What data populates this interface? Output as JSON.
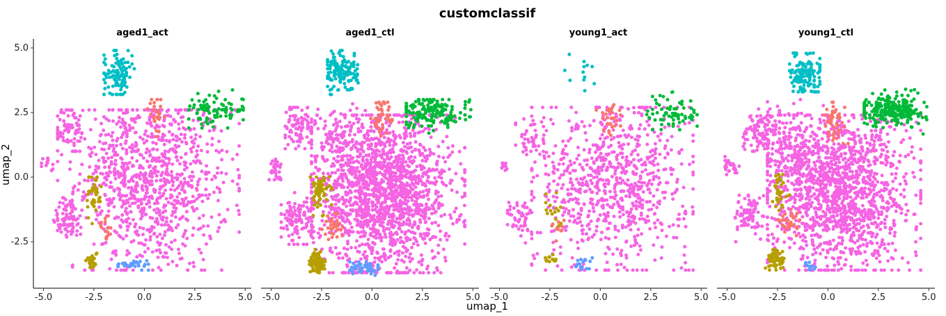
{
  "chart_data": {
    "type": "scatter",
    "title": "customclassif",
    "xlabel": "umap_1",
    "ylabel": "umap_2",
    "xlim": [
      -5.5,
      5.3
    ],
    "ylim": [
      -4.3,
      5.35
    ],
    "x_ticks": [
      -5.0,
      -2.5,
      0.0,
      2.5,
      5.0
    ],
    "x_tick_labels": [
      "-5.0",
      "-2.5",
      "0.0",
      "2.5",
      "5.0"
    ],
    "y_ticks": [
      5.0,
      2.5,
      0.0,
      -2.5
    ],
    "y_tick_labels": [
      "5.0",
      "2.5",
      "0.0",
      "-2.5"
    ],
    "grid": false,
    "legend": "none",
    "point_size": 2.5,
    "category_colors": [
      "#F8766D",
      "#B79F00",
      "#00BA38",
      "#00BFC4",
      "#619CFF",
      "#F564E3"
    ],
    "panels": [
      {
        "name": "aged1_act",
        "clusters": [
          {
            "color": "#F564E3",
            "n": 950,
            "cx": 0.4,
            "cy": -0.2,
            "sx": 1.9,
            "sy": 1.7,
            "xr": [
              -4.3,
              4.7
            ],
            "yr": [
              -3.6,
              2.6
            ]
          },
          {
            "color": "#F564E3",
            "n": 70,
            "cx": -3.7,
            "cy": 1.8,
            "sx": 0.35,
            "sy": 0.5,
            "xr": [
              -4.3,
              -3.1
            ],
            "yr": [
              1.0,
              2.6
            ]
          },
          {
            "color": "#F564E3",
            "n": 70,
            "cx": -3.8,
            "cy": -1.6,
            "sx": 0.4,
            "sy": 0.4,
            "xr": [
              -4.5,
              -3.0
            ],
            "yr": [
              -2.6,
              -0.8
            ]
          },
          {
            "color": "#F564E3",
            "n": 12,
            "cx": -4.8,
            "cy": 0.4,
            "sx": 0.2,
            "sy": 0.2,
            "xr": [
              -5.1,
              -4.4
            ],
            "yr": [
              -0.1,
              0.8
            ]
          },
          {
            "color": "#F564E3",
            "n": 60,
            "cx": -1.2,
            "cy": 1.0,
            "sx": 0.5,
            "sy": 0.9,
            "xr": [
              -2.4,
              0.0
            ],
            "yr": [
              -0.5,
              2.8
            ]
          },
          {
            "color": "#00BFC4",
            "n": 110,
            "cx": -1.3,
            "cy": 4.0,
            "sx": 0.35,
            "sy": 0.45,
            "xr": [
              -2.0,
              -0.5
            ],
            "yr": [
              3.2,
              4.9
            ]
          },
          {
            "color": "#00BA38",
            "n": 90,
            "cx": 3.5,
            "cy": 2.6,
            "sx": 0.8,
            "sy": 0.3,
            "xr": [
              2.2,
              4.9
            ],
            "yr": [
              1.9,
              3.5
            ]
          },
          {
            "color": "#F8766D",
            "n": 25,
            "cx": 0.6,
            "cy": 2.4,
            "sx": 0.2,
            "sy": 0.4,
            "xr": [
              0.1,
              1.0
            ],
            "yr": [
              1.4,
              3.0
            ]
          },
          {
            "color": "#F8766D",
            "n": 15,
            "cx": -1.9,
            "cy": -1.9,
            "sx": 0.2,
            "sy": 0.25,
            "xr": [
              -2.4,
              -1.5
            ],
            "yr": [
              -2.5,
              -1.5
            ]
          },
          {
            "color": "#B79F00",
            "n": 40,
            "cx": -2.5,
            "cy": -0.7,
            "sx": 0.2,
            "sy": 0.5,
            "xr": [
              -2.9,
              -2.0
            ],
            "yr": [
              -1.8,
              0.0
            ]
          },
          {
            "color": "#B79F00",
            "n": 25,
            "cx": -2.6,
            "cy": -3.2,
            "sx": 0.15,
            "sy": 0.2,
            "xr": [
              -2.9,
              -2.3
            ],
            "yr": [
              -3.5,
              -2.7
            ]
          },
          {
            "color": "#619CFF",
            "n": 25,
            "cx": -0.6,
            "cy": -3.4,
            "sx": 0.5,
            "sy": 0.1,
            "xr": [
              -1.3,
              0.2
            ],
            "yr": [
              -3.6,
              -3.2
            ]
          }
        ]
      },
      {
        "name": "aged1_ctl",
        "clusters": [
          {
            "color": "#F564E3",
            "n": 1700,
            "cx": 0.6,
            "cy": -0.6,
            "sx": 1.7,
            "sy": 1.5,
            "xr": [
              -3.0,
              4.6
            ],
            "yr": [
              -3.7,
              2.4
            ]
          },
          {
            "color": "#F564E3",
            "n": 90,
            "cx": -3.6,
            "cy": 1.9,
            "sx": 0.35,
            "sy": 0.4,
            "xr": [
              -4.3,
              -3.0
            ],
            "yr": [
              1.1,
              2.7
            ]
          },
          {
            "color": "#F564E3",
            "n": 110,
            "cx": -3.7,
            "cy": -1.6,
            "sx": 0.45,
            "sy": 0.45,
            "xr": [
              -4.5,
              -2.9
            ],
            "yr": [
              -2.6,
              -0.6
            ]
          },
          {
            "color": "#F564E3",
            "n": 30,
            "cx": -4.8,
            "cy": 0.3,
            "sx": 0.2,
            "sy": 0.2,
            "xr": [
              -5.1,
              -4.4
            ],
            "yr": [
              -0.1,
              0.8
            ]
          },
          {
            "color": "#F564E3",
            "n": 120,
            "cx": -1.6,
            "cy": 1.3,
            "sx": 0.6,
            "sy": 0.8,
            "xr": [
              -2.8,
              0.0
            ],
            "yr": [
              -0.4,
              3.0
            ]
          },
          {
            "color": "#00BFC4",
            "n": 140,
            "cx": -1.5,
            "cy": 4.1,
            "sx": 0.4,
            "sy": 0.4,
            "xr": [
              -2.2,
              -0.6
            ],
            "yr": [
              3.2,
              4.9
            ]
          },
          {
            "color": "#00BA38",
            "n": 160,
            "cx": 3.0,
            "cy": 2.5,
            "sx": 0.9,
            "sy": 0.3,
            "xr": [
              1.7,
              4.9
            ],
            "yr": [
              1.5,
              3.0
            ]
          },
          {
            "color": "#F8766D",
            "n": 40,
            "cx": 0.5,
            "cy": 2.3,
            "sx": 0.25,
            "sy": 0.4,
            "xr": [
              -0.1,
              1.0
            ],
            "yr": [
              1.5,
              2.9
            ]
          },
          {
            "color": "#F8766D",
            "n": 30,
            "cx": -1.9,
            "cy": -1.9,
            "sx": 0.25,
            "sy": 0.25,
            "xr": [
              -2.5,
              -1.4
            ],
            "yr": [
              -2.5,
              -1.4
            ]
          },
          {
            "color": "#B79F00",
            "n": 60,
            "cx": -2.6,
            "cy": -0.6,
            "sx": 0.25,
            "sy": 0.35,
            "xr": [
              -3.1,
              -2.0
            ],
            "yr": [
              -1.5,
              0.0
            ]
          },
          {
            "color": "#B79F00",
            "n": 70,
            "cx": -2.7,
            "cy": -3.3,
            "sx": 0.2,
            "sy": 0.2,
            "xr": [
              -3.1,
              -2.2
            ],
            "yr": [
              -3.7,
              -2.8
            ]
          },
          {
            "color": "#619CFF",
            "n": 45,
            "cx": -0.3,
            "cy": -3.5,
            "sx": 0.5,
            "sy": 0.15,
            "xr": [
              -1.1,
              0.3
            ],
            "yr": [
              -3.8,
              -3.2
            ]
          }
        ]
      },
      {
        "name": "young1_act",
        "clusters": [
          {
            "color": "#F564E3",
            "n": 800,
            "cx": 0.6,
            "cy": -0.2,
            "sx": 1.9,
            "sy": 1.6,
            "xr": [
              -3.4,
              4.6
            ],
            "yr": [
              -3.6,
              2.7
            ]
          },
          {
            "color": "#F564E3",
            "n": 40,
            "cx": -3.4,
            "cy": 1.5,
            "sx": 0.4,
            "sy": 0.5,
            "xr": [
              -4.2,
              -2.8
            ],
            "yr": [
              0.6,
              2.3
            ]
          },
          {
            "color": "#F564E3",
            "n": 50,
            "cx": -3.9,
            "cy": -1.6,
            "sx": 0.35,
            "sy": 0.4,
            "xr": [
              -4.6,
              -3.2
            ],
            "yr": [
              -2.6,
              -0.9
            ]
          },
          {
            "color": "#F564E3",
            "n": 8,
            "cx": -4.8,
            "cy": 0.3,
            "sx": 0.15,
            "sy": 0.2,
            "xr": [
              -5.0,
              -4.5
            ],
            "yr": [
              0.0,
              0.6
            ]
          },
          {
            "color": "#00BFC4",
            "n": 12,
            "cx": -1.0,
            "cy": 4.0,
            "sx": 0.4,
            "sy": 0.5,
            "xr": [
              -1.9,
              -0.3
            ],
            "yr": [
              3.2,
              4.9
            ]
          },
          {
            "color": "#00BA38",
            "n": 70,
            "cx": 3.6,
            "cy": 2.5,
            "sx": 0.7,
            "sy": 0.35,
            "xr": [
              2.3,
              4.8
            ],
            "yr": [
              1.5,
              3.4
            ]
          },
          {
            "color": "#F8766D",
            "n": 30,
            "cx": 0.5,
            "cy": 2.3,
            "sx": 0.3,
            "sy": 0.35,
            "xr": [
              -0.2,
              1.0
            ],
            "yr": [
              1.5,
              2.8
            ]
          },
          {
            "color": "#F8766D",
            "n": 12,
            "cx": -2.0,
            "cy": -1.9,
            "sx": 0.2,
            "sy": 0.3,
            "xr": [
              -2.4,
              -1.5
            ],
            "yr": [
              -2.6,
              -1.3
            ]
          },
          {
            "color": "#B79F00",
            "n": 15,
            "cx": -2.3,
            "cy": -1.2,
            "sx": 0.2,
            "sy": 0.4,
            "xr": [
              -2.7,
              -1.7
            ],
            "yr": [
              -1.9,
              0.0
            ]
          },
          {
            "color": "#B79F00",
            "n": 12,
            "cx": -2.5,
            "cy": -3.2,
            "sx": 0.15,
            "sy": 0.1,
            "xr": [
              -2.8,
              -2.2
            ],
            "yr": [
              -3.4,
              -3.0
            ]
          },
          {
            "color": "#619CFF",
            "n": 15,
            "cx": -0.9,
            "cy": -3.4,
            "sx": 0.2,
            "sy": 0.15,
            "xr": [
              -1.2,
              -0.4
            ],
            "yr": [
              -3.7,
              -3.0
            ]
          }
        ]
      },
      {
        "name": "young1_ctl",
        "clusters": [
          {
            "color": "#F564E3",
            "n": 1500,
            "cx": 0.5,
            "cy": -0.5,
            "sx": 1.8,
            "sy": 1.5,
            "xr": [
              -3.0,
              4.6
            ],
            "yr": [
              -3.6,
              2.4
            ]
          },
          {
            "color": "#F564E3",
            "n": 110,
            "cx": -3.3,
            "cy": 1.8,
            "sx": 0.5,
            "sy": 0.4,
            "xr": [
              -4.2,
              -2.4
            ],
            "yr": [
              1.0,
              2.7
            ]
          },
          {
            "color": "#F564E3",
            "n": 80,
            "cx": -3.9,
            "cy": -1.5,
            "sx": 0.35,
            "sy": 0.4,
            "xr": [
              -4.6,
              -3.1
            ],
            "yr": [
              -2.5,
              -0.7
            ]
          },
          {
            "color": "#F564E3",
            "n": 25,
            "cx": -4.8,
            "cy": 0.4,
            "sx": 0.2,
            "sy": 0.2,
            "xr": [
              -5.1,
              -4.4
            ],
            "yr": [
              -0.1,
              0.9
            ]
          },
          {
            "color": "#F564E3",
            "n": 120,
            "cx": -1.8,
            "cy": 1.2,
            "sx": 0.6,
            "sy": 0.9,
            "xr": [
              -3.0,
              -0.2
            ],
            "yr": [
              -0.5,
              3.0
            ]
          },
          {
            "color": "#00BFC4",
            "n": 130,
            "cx": -1.1,
            "cy": 4.0,
            "sx": 0.4,
            "sy": 0.4,
            "xr": [
              -1.9,
              -0.4
            ],
            "yr": [
              3.3,
              4.8
            ]
          },
          {
            "color": "#00BA38",
            "n": 260,
            "cx": 3.2,
            "cy": 2.6,
            "sx": 0.8,
            "sy": 0.3,
            "xr": [
              1.8,
              4.9
            ],
            "yr": [
              1.2,
              3.4
            ]
          },
          {
            "color": "#F8766D",
            "n": 45,
            "cx": 0.4,
            "cy": 2.2,
            "sx": 0.3,
            "sy": 0.4,
            "xr": [
              -0.2,
              1.0
            ],
            "yr": [
              1.3,
              2.9
            ]
          },
          {
            "color": "#F8766D",
            "n": 30,
            "cx": -1.9,
            "cy": -1.8,
            "sx": 0.25,
            "sy": 0.3,
            "xr": [
              -2.5,
              -1.4
            ],
            "yr": [
              -2.6,
              -1.2
            ]
          },
          {
            "color": "#B79F00",
            "n": 35,
            "cx": -2.4,
            "cy": -0.6,
            "sx": 0.2,
            "sy": 0.4,
            "xr": [
              -2.9,
              -1.9
            ],
            "yr": [
              -1.5,
              0.1
            ]
          },
          {
            "color": "#B79F00",
            "n": 60,
            "cx": -2.6,
            "cy": -3.2,
            "sx": 0.25,
            "sy": 0.2,
            "xr": [
              -3.1,
              -2.0
            ],
            "yr": [
              -3.6,
              -2.8
            ]
          },
          {
            "color": "#619CFF",
            "n": 12,
            "cx": -0.8,
            "cy": -3.4,
            "sx": 0.2,
            "sy": 0.1,
            "xr": [
              -1.1,
              -0.4
            ],
            "yr": [
              -3.6,
              -3.2
            ]
          }
        ]
      }
    ]
  }
}
